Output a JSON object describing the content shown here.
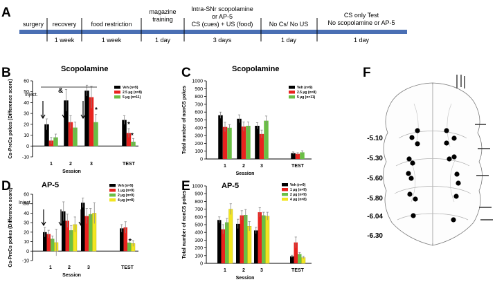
{
  "panel_labels": {
    "a": "A",
    "b": "B",
    "c": "C",
    "d": "D",
    "e": "E",
    "f": "F"
  },
  "timeline": {
    "stages": [
      "surgery",
      "recovery",
      "food restriction",
      "magazine training",
      "CS (cues) + US (food)",
      "No Cs/ No US",
      "CS only Test"
    ],
    "durations": [
      "1 week",
      "1 week",
      "1 day",
      "3 days",
      "1 day",
      "1 day"
    ],
    "notes": {
      "conditioning_top": "Intra-SNr scopolamine",
      "conditioning_mid": "or AP-5",
      "test_sub": "No scopolamine or AP-5"
    }
  },
  "annotations": {
    "inject": "Inject.",
    "ampersand": "&",
    "star": "*"
  },
  "colors": {
    "timeline_bar": "#4a6fb4",
    "black": "#000000",
    "red": "#e8231f",
    "green": "#6abf45",
    "yellow": "#f2e521"
  },
  "atlas": {
    "coordinates": [
      "-5.10",
      "-5.30",
      "-5.60",
      "-5.80",
      "-6.04",
      "-6.30"
    ]
  },
  "chart_data": [
    {
      "id": "B",
      "type": "bar",
      "title": "Scopolamine",
      "xlabel": "Session",
      "ylabel": "Cs-PreCs pokes (Difference score)",
      "ylim": [
        -10,
        60
      ],
      "yticks": [
        -10,
        0,
        10,
        20,
        30,
        40,
        50,
        60
      ],
      "categories": [
        "1",
        "2",
        "3",
        "TEST"
      ],
      "series": [
        {
          "name": "Veh (n=9)",
          "color": "#000000",
          "values": [
            20,
            42,
            51,
            24
          ],
          "errors": [
            5,
            10,
            5,
            4
          ]
        },
        {
          "name": "2.5 μg (n=8)",
          "color": "#e8231f",
          "values": [
            5,
            22,
            45,
            12
          ],
          "errors": [
            3,
            6,
            10,
            4
          ]
        },
        {
          "name": "5 μg (n=11)",
          "color": "#6abf45",
          "values": [
            8,
            17,
            22,
            4
          ],
          "errors": [
            3,
            5,
            7,
            3
          ]
        }
      ]
    },
    {
      "id": "C",
      "type": "bar",
      "title": "Scopolamine",
      "xlabel": "Session",
      "ylabel": "Total number of nonCS pokes",
      "ylim": [
        0,
        1000
      ],
      "yticks": [
        0,
        100,
        200,
        300,
        400,
        500,
        600,
        700,
        800,
        900,
        1000
      ],
      "categories": [
        "1",
        "2",
        "3",
        "TEST"
      ],
      "series": [
        {
          "name": "Veh (n=9)",
          "color": "#000000",
          "values": [
            560,
            515,
            425,
            75
          ],
          "errors": [
            40,
            50,
            40,
            15
          ]
        },
        {
          "name": "2.5 μg (n=8)",
          "color": "#e8231f",
          "values": [
            410,
            415,
            320,
            65
          ],
          "errors": [
            60,
            60,
            50,
            15
          ]
        },
        {
          "name": "5 μg (n=11)",
          "color": "#6abf45",
          "values": [
            400,
            425,
            490,
            85
          ],
          "errors": [
            40,
            50,
            60,
            20
          ]
        }
      ]
    },
    {
      "id": "D",
      "type": "bar",
      "title": "AP-5",
      "xlabel": "Session",
      "ylabel": "Cs-PreCs pokes (Difference score)",
      "ylim": [
        -10,
        60
      ],
      "yticks": [
        -10,
        0,
        10,
        20,
        30,
        40,
        50,
        60
      ],
      "categories": [
        "1",
        "2",
        "3",
        "TEST"
      ],
      "series": [
        {
          "name": "Veh (n=9)",
          "color": "#000000",
          "values": [
            20,
            42,
            51,
            24
          ],
          "errors": [
            5,
            10,
            5,
            4
          ]
        },
        {
          "name": "1 μg (n=9)",
          "color": "#e8231f",
          "values": [
            18,
            32,
            37,
            25
          ],
          "errors": [
            4,
            7,
            8,
            6
          ]
        },
        {
          "name": "2 μg (n=9)",
          "color": "#6abf45",
          "values": [
            13,
            22,
            39,
            9
          ],
          "errors": [
            3,
            5,
            6,
            3
          ]
        },
        {
          "name": "4 μg (n=8)",
          "color": "#f2e521",
          "values": [
            9,
            28,
            40,
            8
          ],
          "errors": [
            14,
            8,
            11,
            3
          ]
        }
      ]
    },
    {
      "id": "E",
      "type": "bar",
      "title": "AP-5",
      "xlabel": "Session",
      "ylabel": "Total number of nonCS pokes",
      "ylim": [
        0,
        1000
      ],
      "yticks": [
        0,
        100,
        200,
        300,
        400,
        500,
        600,
        700,
        800,
        900,
        1000
      ],
      "categories": [
        "1",
        "2",
        "3",
        "TEST"
      ],
      "series": [
        {
          "name": "Veh (n=9)",
          "color": "#000000",
          "values": [
            560,
            510,
            425,
            90
          ],
          "errors": [
            40,
            60,
            40,
            15
          ]
        },
        {
          "name": "1 μg (n=9)",
          "color": "#e8231f",
          "values": [
            440,
            620,
            660,
            270
          ],
          "errors": [
            60,
            60,
            60,
            70
          ]
        },
        {
          "name": "2 μg (n=9)",
          "color": "#6abf45",
          "values": [
            530,
            625,
            620,
            120
          ],
          "errors": [
            50,
            70,
            40,
            20
          ]
        },
        {
          "name": "4 μg (n=8)",
          "color": "#f2e521",
          "values": [
            700,
            480,
            610,
            75
          ],
          "errors": [
            70,
            60,
            50,
            15
          ]
        }
      ]
    }
  ]
}
